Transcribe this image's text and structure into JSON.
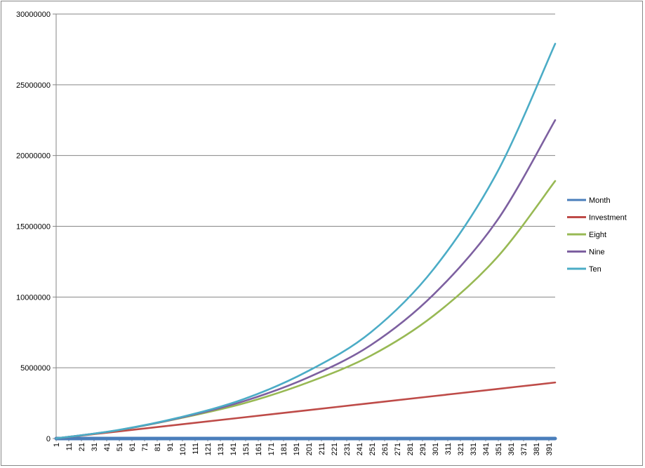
{
  "chart_data": {
    "type": "line",
    "title": "",
    "xlabel": "",
    "ylabel": "",
    "x_tick_labels": [
      "1",
      "11",
      "21",
      "31",
      "41",
      "51",
      "61",
      "71",
      "81",
      "91",
      "101",
      "111",
      "121",
      "131",
      "141",
      "151",
      "161",
      "171",
      "181",
      "191",
      "201",
      "211",
      "221",
      "231",
      "241",
      "251",
      "261",
      "271",
      "281",
      "291",
      "301",
      "311",
      "321",
      "331",
      "341",
      "351",
      "361",
      "371",
      "381",
      "391"
    ],
    "x_range": [
      1,
      396
    ],
    "y_ticks": [
      0,
      5000000,
      10000000,
      15000000,
      20000000,
      25000000,
      30000000
    ],
    "y_tick_labels": [
      "0",
      "5000000",
      "10000000",
      "15000000",
      "20000000",
      "25000000",
      "30000000"
    ],
    "ylim": [
      0,
      30000000
    ],
    "grid": "horizontal",
    "legend_position": "right",
    "series": [
      {
        "name": "Month",
        "color": "#4a7ebb",
        "x": [
          1,
          396
        ],
        "values": [
          1,
          396
        ]
      },
      {
        "name": "Investment",
        "color": "#be4b48",
        "x": [
          1,
          50,
          100,
          150,
          200,
          250,
          300,
          350,
          396
        ],
        "values": [
          10000,
          500000,
          1000000,
          1500000,
          2000000,
          2500000,
          3000000,
          3500000,
          3960000
        ]
      },
      {
        "name": "Eight",
        "color": "#98b954",
        "x": [
          1,
          50,
          100,
          150,
          200,
          250,
          300,
          350,
          396
        ],
        "values": [
          10000,
          580000,
          1450000,
          2500000,
          3950000,
          5850000,
          8700000,
          12800000,
          18200000
        ]
      },
      {
        "name": "Nine",
        "color": "#7d60a0",
        "x": [
          1,
          50,
          100,
          150,
          200,
          250,
          300,
          350,
          396
        ],
        "values": [
          10000,
          590000,
          1480000,
          2650000,
          4300000,
          6600000,
          10200000,
          15400000,
          22500000
        ]
      },
      {
        "name": "Ten",
        "color": "#4bacc6",
        "x": [
          1,
          50,
          100,
          150,
          200,
          250,
          300,
          350,
          396
        ],
        "values": [
          10000,
          600000,
          1520000,
          2800000,
          4750000,
          7500000,
          12000000,
          18800000,
          27900000
        ]
      }
    ]
  }
}
